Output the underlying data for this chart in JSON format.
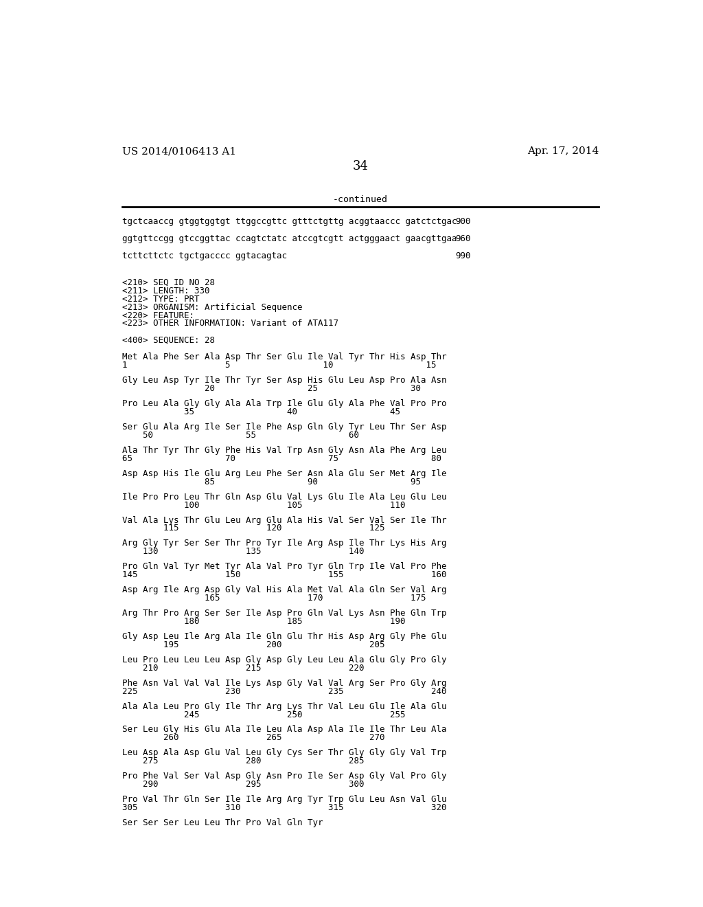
{
  "header_left": "US 2014/0106413 A1",
  "header_right": "Apr. 17, 2014",
  "page_number": "34",
  "continued_label": "-continued",
  "background_color": "#ffffff",
  "text_color": "#000000",
  "lines": [
    {
      "text": "tgctcaaccg gtggtggtgt ttggccgttc gtttctgttg acggtaaccc gatctctgac",
      "num": "900"
    },
    {
      "text": "",
      "num": ""
    },
    {
      "text": "ggtgttccgg gtccggttac ccagtctatc atccgtcgtt actgggaact gaacgttgaa",
      "num": "960"
    },
    {
      "text": "",
      "num": ""
    },
    {
      "text": "tcttcttctc tgctgacccc ggtacagtac",
      "num": "990"
    },
    {
      "text": "",
      "num": ""
    },
    {
      "text": "",
      "num": ""
    },
    {
      "text": "<210> SEQ ID NO 28",
      "num": ""
    },
    {
      "text": "<211> LENGTH: 330",
      "num": ""
    },
    {
      "text": "<212> TYPE: PRT",
      "num": ""
    },
    {
      "text": "<213> ORGANISM: Artificial Sequence",
      "num": ""
    },
    {
      "text": "<220> FEATURE:",
      "num": ""
    },
    {
      "text": "<223> OTHER INFORMATION: Variant of ATA117",
      "num": ""
    },
    {
      "text": "",
      "num": ""
    },
    {
      "text": "<400> SEQUENCE: 28",
      "num": ""
    },
    {
      "text": "",
      "num": ""
    },
    {
      "text": "Met Ala Phe Ser Ala Asp Thr Ser Glu Ile Val Tyr Thr His Asp Thr",
      "num": ""
    },
    {
      "text": "1                   5                  10                  15",
      "num": ""
    },
    {
      "text": "",
      "num": ""
    },
    {
      "text": "Gly Leu Asp Tyr Ile Thr Tyr Ser Asp His Glu Leu Asp Pro Ala Asn",
      "num": ""
    },
    {
      "text": "                20                  25                  30",
      "num": ""
    },
    {
      "text": "",
      "num": ""
    },
    {
      "text": "Pro Leu Ala Gly Gly Ala Ala Trp Ile Glu Gly Ala Phe Val Pro Pro",
      "num": ""
    },
    {
      "text": "            35                  40                  45",
      "num": ""
    },
    {
      "text": "",
      "num": ""
    },
    {
      "text": "Ser Glu Ala Arg Ile Ser Ile Phe Asp Gln Gly Tyr Leu Thr Ser Asp",
      "num": ""
    },
    {
      "text": "    50                  55                  60",
      "num": ""
    },
    {
      "text": "",
      "num": ""
    },
    {
      "text": "Ala Thr Tyr Thr Gly Phe His Val Trp Asn Gly Asn Ala Phe Arg Leu",
      "num": ""
    },
    {
      "text": "65                  70                  75                  80",
      "num": ""
    },
    {
      "text": "",
      "num": ""
    },
    {
      "text": "Asp Asp His Ile Glu Arg Leu Phe Ser Asn Ala Glu Ser Met Arg Ile",
      "num": ""
    },
    {
      "text": "                85                  90                  95",
      "num": ""
    },
    {
      "text": "",
      "num": ""
    },
    {
      "text": "Ile Pro Pro Leu Thr Gln Asp Glu Val Lys Glu Ile Ala Leu Glu Leu",
      "num": ""
    },
    {
      "text": "            100                 105                 110",
      "num": ""
    },
    {
      "text": "",
      "num": ""
    },
    {
      "text": "Val Ala Lys Thr Glu Leu Arg Glu Ala His Val Ser Val Ser Ile Thr",
      "num": ""
    },
    {
      "text": "        115                 120                 125",
      "num": ""
    },
    {
      "text": "",
      "num": ""
    },
    {
      "text": "Arg Gly Tyr Ser Ser Thr Pro Tyr Ile Arg Asp Ile Thr Lys His Arg",
      "num": ""
    },
    {
      "text": "    130                 135                 140",
      "num": ""
    },
    {
      "text": "",
      "num": ""
    },
    {
      "text": "Pro Gln Val Tyr Met Tyr Ala Val Pro Tyr Gln Trp Ile Val Pro Phe",
      "num": ""
    },
    {
      "text": "145                 150                 155                 160",
      "num": ""
    },
    {
      "text": "",
      "num": ""
    },
    {
      "text": "Asp Arg Ile Arg Asp Gly Val His Ala Met Val Ala Gln Ser Val Arg",
      "num": ""
    },
    {
      "text": "                165                 170                 175",
      "num": ""
    },
    {
      "text": "",
      "num": ""
    },
    {
      "text": "Arg Thr Pro Arg Ser Ser Ile Asp Pro Gln Val Lys Asn Phe Gln Trp",
      "num": ""
    },
    {
      "text": "            180                 185                 190",
      "num": ""
    },
    {
      "text": "",
      "num": ""
    },
    {
      "text": "Gly Asp Leu Ile Arg Ala Ile Gln Glu Thr His Asp Arg Gly Phe Glu",
      "num": ""
    },
    {
      "text": "        195                 200                 205",
      "num": ""
    },
    {
      "text": "",
      "num": ""
    },
    {
      "text": "Leu Pro Leu Leu Leu Asp Gly Asp Gly Leu Leu Ala Glu Gly Pro Gly",
      "num": ""
    },
    {
      "text": "    210                 215                 220",
      "num": ""
    },
    {
      "text": "",
      "num": ""
    },
    {
      "text": "Phe Asn Val Val Val Ile Lys Asp Gly Val Val Arg Ser Pro Gly Arg",
      "num": ""
    },
    {
      "text": "225                 230                 235                 240",
      "num": ""
    },
    {
      "text": "",
      "num": ""
    },
    {
      "text": "Ala Ala Leu Pro Gly Ile Thr Arg Lys Thr Val Leu Glu Ile Ala Glu",
      "num": ""
    },
    {
      "text": "            245                 250                 255",
      "num": ""
    },
    {
      "text": "",
      "num": ""
    },
    {
      "text": "Ser Leu Gly His Glu Ala Ile Leu Ala Asp Ala Ile Ile Thr Leu Ala",
      "num": ""
    },
    {
      "text": "        260                 265                 270",
      "num": ""
    },
    {
      "text": "",
      "num": ""
    },
    {
      "text": "Leu Asp Ala Asp Glu Val Leu Gly Cys Ser Thr Gly Gly Gly Val Trp",
      "num": ""
    },
    {
      "text": "    275                 280                 285",
      "num": ""
    },
    {
      "text": "",
      "num": ""
    },
    {
      "text": "Pro Phe Val Ser Val Asp Gly Asn Pro Ile Ser Asp Gly Val Pro Gly",
      "num": ""
    },
    {
      "text": "    290                 295                 300",
      "num": ""
    },
    {
      "text": "",
      "num": ""
    },
    {
      "text": "Pro Val Thr Gln Ser Ile Ile Arg Arg Tyr Trp Glu Leu Asn Val Glu",
      "num": ""
    },
    {
      "text": "305                 310                 315                 320",
      "num": ""
    },
    {
      "text": "",
      "num": ""
    },
    {
      "text": "Ser Ser Ser Leu Leu Thr Pro Val Gln Tyr",
      "num": ""
    }
  ],
  "dna_lines": [
    {
      "text": "tgctcaaccg gtggtggtgt ttggccgttc gtttctgttg acggtaaccc gatctctgac",
      "num": "900"
    },
    {
      "text": "ggtgttccgg gtccggttac ccagtctatc atccgtcgtt actgggaact gaacgttgaa",
      "num": "960"
    },
    {
      "text": "tcttcttctc tgctgacccc ggtacagtac",
      "num": "990"
    }
  ]
}
